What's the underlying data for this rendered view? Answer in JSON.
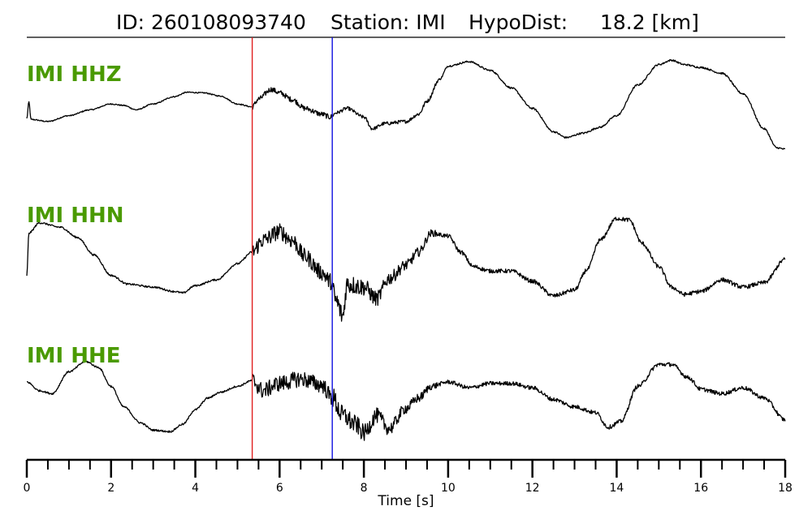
{
  "header": {
    "id_text": "ID: 260108093740",
    "station_text": "Station: IMI",
    "dist_text": "HypoDist:     18.2 [km]"
  },
  "chart_data": {
    "type": "line",
    "xlabel": "Time [s]",
    "xlim": [
      0,
      18
    ],
    "major_ticks": [
      0,
      2,
      4,
      6,
      8,
      10,
      12,
      14,
      16,
      18
    ],
    "minor_tick_step": 0.5,
    "label_color": "#4a9a00",
    "picks": [
      {
        "phase": "P",
        "time": 5.35,
        "color": "#e02020"
      },
      {
        "phase": "S",
        "time": 7.25,
        "color": "#1010e0"
      }
    ],
    "series": [
      {
        "name": "IMI HHZ",
        "points": [
          [
            0,
            0.05
          ],
          [
            0.05,
            0.62
          ],
          [
            0.1,
            0.02
          ],
          [
            0.5,
            -0.05
          ],
          [
            1,
            0.15
          ],
          [
            1.5,
            0.35
          ],
          [
            2,
            0.55
          ],
          [
            2.3,
            0.5
          ],
          [
            2.6,
            0.35
          ],
          [
            3,
            0.55
          ],
          [
            3.5,
            0.8
          ],
          [
            3.8,
            0.95
          ],
          [
            4.2,
            0.93
          ],
          [
            4.6,
            0.82
          ],
          [
            5,
            0.55
          ],
          [
            5.35,
            0.45
          ],
          [
            5.5,
            0.72
          ],
          [
            5.8,
            1.05
          ],
          [
            6,
            0.93
          ],
          [
            6.3,
            0.7
          ],
          [
            6.6,
            0.4
          ],
          [
            7,
            0.2
          ],
          [
            7.2,
            0.1
          ],
          [
            7.35,
            0.25
          ],
          [
            7.6,
            0.4
          ],
          [
            8,
            0.1
          ],
          [
            8.2,
            -0.3
          ],
          [
            8.5,
            -0.12
          ],
          [
            9,
            -0.05
          ],
          [
            9.3,
            0.2
          ],
          [
            9.5,
            0.65
          ],
          [
            9.8,
            1.4
          ],
          [
            10,
            1.85
          ],
          [
            10.5,
            2.0
          ],
          [
            11,
            1.7
          ],
          [
            11.5,
            1.1
          ],
          [
            12,
            0.4
          ],
          [
            12.5,
            -0.4
          ],
          [
            12.8,
            -0.6
          ],
          [
            13.2,
            -0.45
          ],
          [
            13.6,
            -0.25
          ],
          [
            14,
            0.15
          ],
          [
            14.5,
            1.2
          ],
          [
            15,
            1.9
          ],
          [
            15.3,
            2.05
          ],
          [
            15.6,
            1.9
          ],
          [
            16,
            1.8
          ],
          [
            16.5,
            1.6
          ],
          [
            17,
            0.9
          ],
          [
            17.5,
            -0.3
          ],
          [
            17.8,
            -0.95
          ],
          [
            18,
            -1.0
          ]
        ]
      },
      {
        "name": "IMI HHN",
        "points": [
          [
            0,
            -0.6
          ],
          [
            0.05,
            0.85
          ],
          [
            0.3,
            1.2
          ],
          [
            0.8,
            1.05
          ],
          [
            1.2,
            0.7
          ],
          [
            1.6,
            0.1
          ],
          [
            2,
            -0.6
          ],
          [
            2.4,
            -0.9
          ],
          [
            3,
            -1.0
          ],
          [
            3.5,
            -1.15
          ],
          [
            3.7,
            -1.2
          ],
          [
            4,
            -0.95
          ],
          [
            4.5,
            -0.75
          ],
          [
            5,
            -0.2
          ],
          [
            5.35,
            0.2
          ],
          [
            5.6,
            0.6
          ],
          [
            6,
            0.9
          ],
          [
            6.3,
            0.6
          ],
          [
            6.6,
            0.05
          ],
          [
            7,
            -0.5
          ],
          [
            7.2,
            -0.8
          ],
          [
            7.35,
            -1.5
          ],
          [
            7.5,
            -2.0
          ],
          [
            7.6,
            -0.9
          ],
          [
            8,
            -1.0
          ],
          [
            8.3,
            -1.4
          ],
          [
            8.6,
            -0.7
          ],
          [
            9,
            -0.25
          ],
          [
            9.3,
            0.2
          ],
          [
            9.6,
            0.85
          ],
          [
            10,
            0.75
          ],
          [
            10.3,
            0.2
          ],
          [
            10.6,
            -0.3
          ],
          [
            11,
            -0.45
          ],
          [
            11.5,
            -0.45
          ],
          [
            12,
            -0.8
          ],
          [
            12.5,
            -1.3
          ],
          [
            13,
            -1.1
          ],
          [
            13.3,
            -0.4
          ],
          [
            13.6,
            0.6
          ],
          [
            14,
            1.35
          ],
          [
            14.3,
            1.3
          ],
          [
            14.6,
            0.5
          ],
          [
            15,
            -0.3
          ],
          [
            15.3,
            -1.0
          ],
          [
            15.6,
            -1.25
          ],
          [
            16,
            -1.15
          ],
          [
            16.5,
            -0.75
          ],
          [
            17,
            -1.0
          ],
          [
            17.5,
            -0.85
          ],
          [
            18,
            -0.05
          ]
        ]
      },
      {
        "name": "IMI HHE",
        "points": [
          [
            0,
            0.25
          ],
          [
            0.3,
            -0.05
          ],
          [
            0.6,
            -0.15
          ],
          [
            1,
            0.6
          ],
          [
            1.4,
            0.95
          ],
          [
            1.7,
            0.75
          ],
          [
            2,
            0.1
          ],
          [
            2.3,
            -0.6
          ],
          [
            2.7,
            -1.15
          ],
          [
            3,
            -1.4
          ],
          [
            3.4,
            -1.45
          ],
          [
            3.7,
            -1.2
          ],
          [
            4,
            -0.7
          ],
          [
            4.3,
            -0.3
          ],
          [
            4.6,
            -0.1
          ],
          [
            5,
            0.1
          ],
          [
            5.35,
            0.3
          ],
          [
            5.6,
            -0.05
          ],
          [
            6,
            0.2
          ],
          [
            6.5,
            0.35
          ],
          [
            7,
            0.15
          ],
          [
            7.25,
            -0.3
          ],
          [
            7.5,
            -0.9
          ],
          [
            7.8,
            -1.2
          ],
          [
            8,
            -1.5
          ],
          [
            8.3,
            -0.9
          ],
          [
            8.6,
            -1.35
          ],
          [
            9,
            -0.65
          ],
          [
            9.3,
            -0.3
          ],
          [
            9.6,
            0.1
          ],
          [
            10,
            0.25
          ],
          [
            10.5,
            0.05
          ],
          [
            11,
            0.2
          ],
          [
            11.5,
            0.2
          ],
          [
            12,
            0.05
          ],
          [
            12.5,
            -0.35
          ],
          [
            13,
            -0.6
          ],
          [
            13.5,
            -0.8
          ],
          [
            13.8,
            -1.3
          ],
          [
            14.1,
            -1.1
          ],
          [
            14.5,
            0.1
          ],
          [
            15,
            0.85
          ],
          [
            15.3,
            0.85
          ],
          [
            15.7,
            0.4
          ],
          [
            16,
            0.0
          ],
          [
            16.5,
            -0.15
          ],
          [
            17,
            0.05
          ],
          [
            17.5,
            -0.3
          ],
          [
            18,
            -1.05
          ]
        ]
      }
    ]
  }
}
